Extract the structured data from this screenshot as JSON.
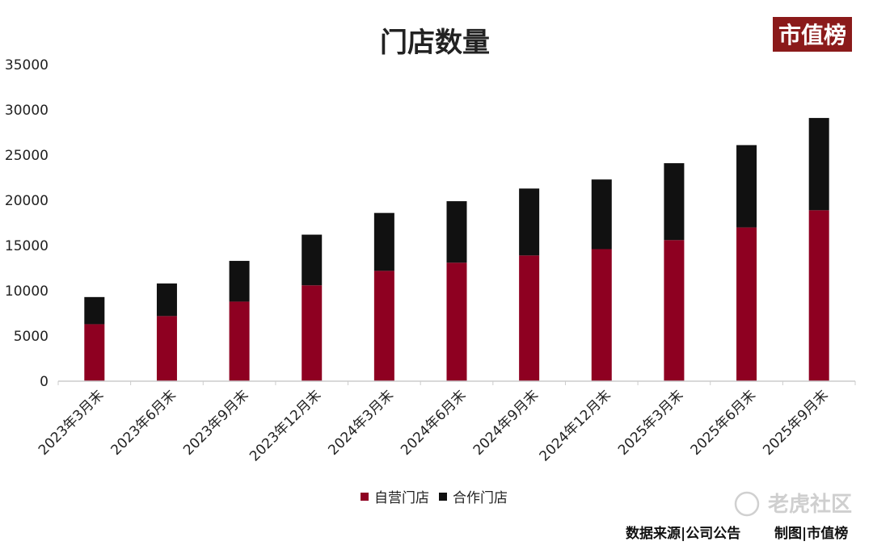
{
  "logo": {
    "text": "市值榜",
    "color": "#8b1a1a"
  },
  "watermark": {
    "text": "老虎社区"
  },
  "footer": {
    "source": "数据来源|公司公告",
    "made_by": "制图|市值榜"
  },
  "chart_data": {
    "type": "bar",
    "stacked": true,
    "title": "门店数量",
    "xlabel": "",
    "ylabel": "",
    "ylim": [
      0,
      35000
    ],
    "yticks": [
      0,
      5000,
      10000,
      15000,
      20000,
      25000,
      30000,
      35000
    ],
    "grid": false,
    "legend_position": "bottom",
    "categories": [
      "2023年3月末",
      "2023年6月末",
      "2023年9月末",
      "2023年12月末",
      "2024年3月末",
      "2024年6月末",
      "2024年9月末",
      "2024年12月末",
      "2025年3月末",
      "2025年6月末",
      "2025年9月末"
    ],
    "series": [
      {
        "name": "自营门店",
        "color": "#8e0021",
        "values": [
          6300,
          7200,
          8800,
          10600,
          12200,
          13100,
          13900,
          14600,
          15600,
          17000,
          18900
        ]
      },
      {
        "name": "合作门店",
        "color": "#111111",
        "values": [
          3000,
          3600,
          4500,
          5600,
          6400,
          6800,
          7400,
          7700,
          8500,
          9100,
          10200
        ]
      }
    ]
  }
}
